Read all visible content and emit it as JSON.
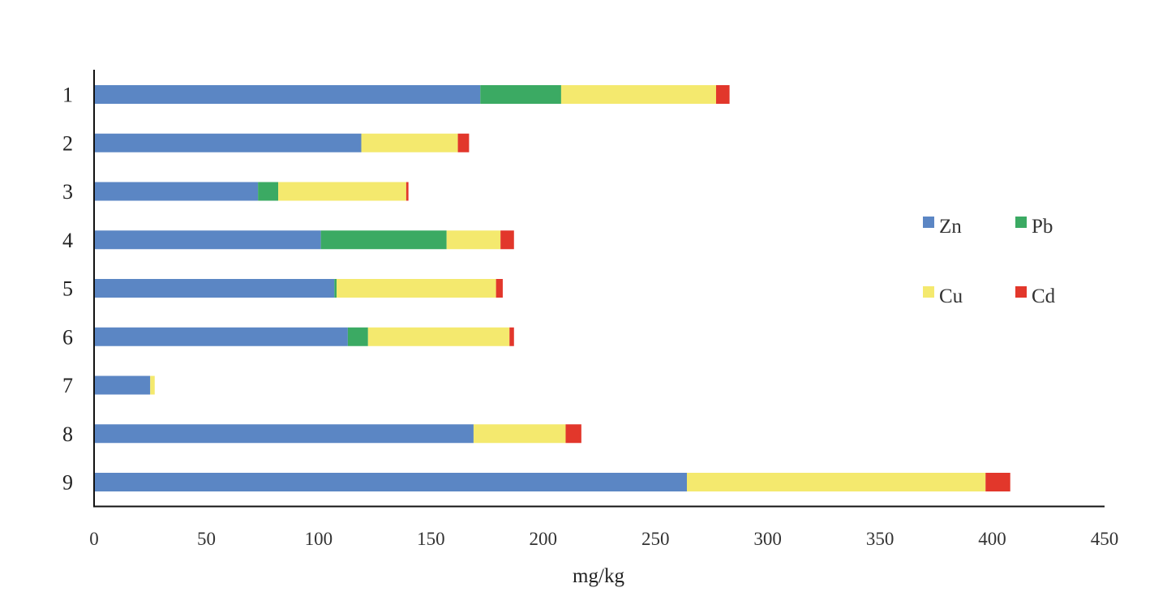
{
  "chart_data": {
    "type": "bar",
    "orientation": "horizontal",
    "stacked": true,
    "title": "",
    "xlabel": "mg/kg",
    "ylabel": "",
    "xlim": [
      0,
      450
    ],
    "x_ticks": [
      "0",
      "50",
      "100",
      "150",
      "200",
      "250",
      "300",
      "350",
      "400",
      "450"
    ],
    "categories": [
      "1",
      "2",
      "3",
      "4",
      "5",
      "6",
      "7",
      "8",
      "9"
    ],
    "series": [
      {
        "name": "Zn",
        "color": "#5B86C4",
        "values": [
          172,
          119,
          73,
          101,
          107,
          113,
          25,
          169,
          264
        ]
      },
      {
        "name": "Pb",
        "color": "#3BAA63",
        "values": [
          36,
          0,
          9,
          56,
          1,
          9,
          0,
          0,
          0
        ]
      },
      {
        "name": "Cu",
        "color": "#F4E96E",
        "values": [
          69,
          43,
          57,
          24,
          71,
          63,
          2,
          41,
          133
        ]
      },
      {
        "name": "Cd",
        "color": "#E2372B",
        "values": [
          6,
          5,
          1,
          6,
          3,
          2,
          0,
          7,
          11
        ]
      }
    ],
    "legend": {
      "placement": "right",
      "entries": [
        "Zn",
        "Pb",
        "Cu",
        "Cd"
      ]
    },
    "grid": false
  }
}
